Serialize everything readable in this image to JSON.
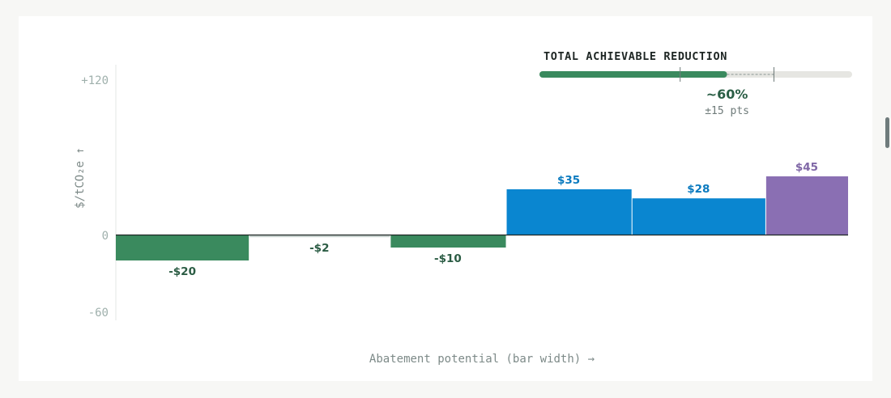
{
  "chart_data": {
    "type": "bar",
    "variable_width": true,
    "ylabel": "$/tCO₂e ↑",
    "xlabel": "Abatement potential (bar width) →",
    "ylim": [
      -60,
      120
    ],
    "yticks": [
      {
        "value": 120,
        "label": "+120"
      },
      {
        "value": 0,
        "label": "0"
      },
      {
        "value": -60,
        "label": "-60"
      }
    ],
    "grid": false,
    "bars": [
      {
        "value": -20,
        "label": "-$20",
        "width": 164,
        "color": "#3a8a5e",
        "label_color": "#2b5c44"
      },
      {
        "value": -2,
        "label": "-$2",
        "width": 174,
        "color": "#c9d3d0",
        "label_color": "#2b5c44"
      },
      {
        "value": -10,
        "label": "-$10",
        "width": 143,
        "color": "#3a8a5e",
        "label_color": "#2b5c44"
      },
      {
        "value": 35,
        "label": "$35",
        "width": 155,
        "color": "#0a86d0",
        "label_color": "#0a7abf"
      },
      {
        "value": 28,
        "label": "$28",
        "width": 165,
        "color": "#0a86d0",
        "label_color": "#0a7abf"
      },
      {
        "value": 45,
        "label": "$45",
        "width": 102,
        "color": "#8a6fb3",
        "label_color": "#7f67a6"
      }
    ]
  },
  "meter": {
    "title": "TOTAL ACHIEVABLE REDUCTION",
    "value_label": "~60%",
    "uncertainty_label": "±15 pts",
    "value": 0.6,
    "range_low": 0.45,
    "range_high": 0.75,
    "fill_color": "#3a8a5e",
    "track_color": "#e6e6e2"
  }
}
